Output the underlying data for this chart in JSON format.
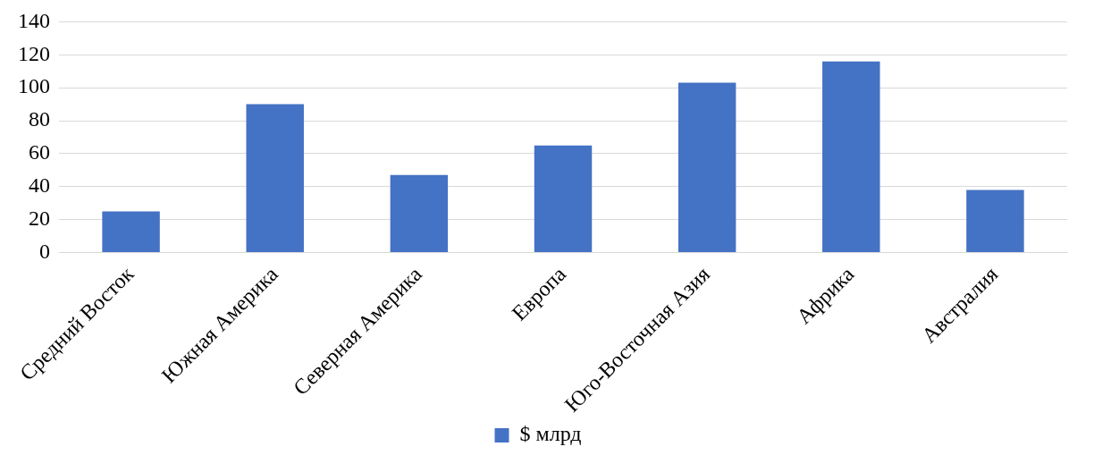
{
  "chart_data": {
    "type": "bar",
    "categories": [
      "Средний Восток",
      "Южная Америка",
      "Северная Америка",
      "Европа",
      "Юго-Восточная Азия",
      "Африка",
      "Австралия"
    ],
    "series": [
      {
        "name": "$ млрд",
        "color": "#4472c4",
        "values": [
          25,
          90,
          47,
          65,
          103,
          116,
          38
        ]
      }
    ],
    "ylim": [
      0,
      140
    ],
    "yticks": [
      0,
      20,
      40,
      60,
      80,
      100,
      120,
      140
    ],
    "grid": "y",
    "legend": "bottom"
  }
}
